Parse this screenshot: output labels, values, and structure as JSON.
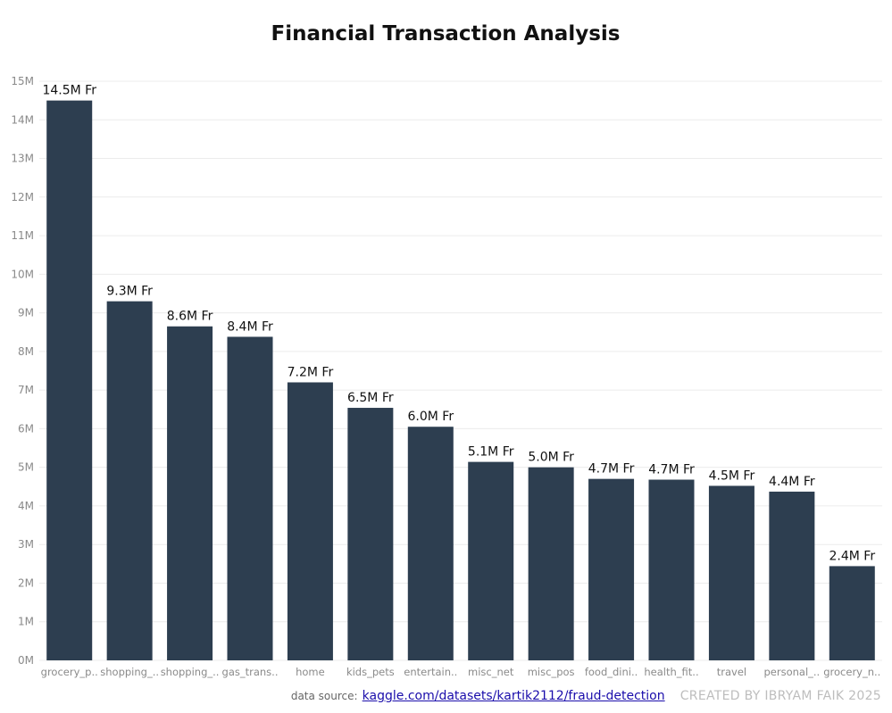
{
  "colors": {
    "bar": "#2d3e50",
    "grid": "#ececec",
    "axis_text": "#8a8a8a",
    "label_text": "#111111",
    "link": "#1a0dab",
    "credit": "#bdbdbd"
  },
  "footer": {
    "source_label": "data source:",
    "source_link": "kaggle.com/datasets/kartik2112/fraud-detection",
    "credit": "CREATED BY IBRYAM FAIK 2025"
  },
  "chart_data": {
    "type": "bar",
    "title": "Financial Transaction Analysis",
    "xlabel": "",
    "ylabel": "",
    "ylim": [
      0,
      15
    ],
    "grid": true,
    "y_ticks": [
      "0M",
      "1M",
      "2M",
      "3M",
      "4M",
      "5M",
      "6M",
      "7M",
      "8M",
      "9M",
      "10M",
      "11M",
      "12M",
      "13M",
      "14M",
      "15M"
    ],
    "categories": [
      "grocery_p..",
      "shopping_..",
      "shopping_..",
      "gas_trans..",
      "home",
      "kids_pets",
      "entertain..",
      "misc_net",
      "misc_pos",
      "food_dini..",
      "health_fit..",
      "travel",
      "personal_..",
      "grocery_n.."
    ],
    "values": [
      14.5,
      9.3,
      8.65,
      8.38,
      7.2,
      6.54,
      6.05,
      5.14,
      5.0,
      4.7,
      4.68,
      4.52,
      4.37,
      2.44
    ],
    "data_labels": [
      "14.5M Fr",
      "9.3M Fr",
      "8.6M Fr",
      "8.4M Fr",
      "7.2M Fr",
      "6.5M Fr",
      "6.0M Fr",
      "5.1M Fr",
      "5.0M Fr",
      "4.7M Fr",
      "4.7M Fr",
      "4.5M Fr",
      "4.4M Fr",
      "2.4M Fr"
    ]
  }
}
